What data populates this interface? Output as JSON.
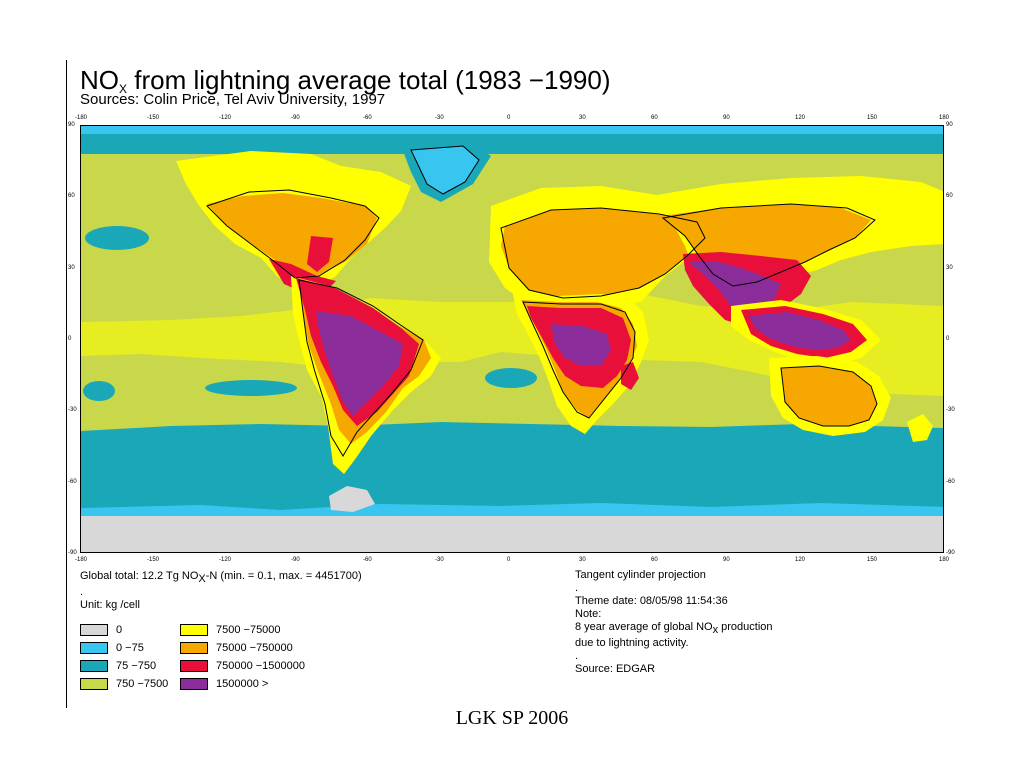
{
  "title": {
    "main_prefix": "NO",
    "main_sub": "X",
    "main_suffix": " from lightning average total (1983 −1990)",
    "subtitle": "Sources: Colin Price, Tel Aviv University, 1997"
  },
  "axes": {
    "lon_labels": [
      "-180",
      "-150",
      "-120",
      "-90",
      "-60",
      "-30",
      "0",
      "30",
      "60",
      "90",
      "120",
      "150",
      "180"
    ],
    "lat_labels": [
      "90",
      "60",
      "30",
      "0",
      "-30",
      "-60",
      "-90"
    ]
  },
  "info_left": {
    "line1_prefix": "Global total:  12.2 Tg NO",
    "line1_sub": "X",
    "line1_suffix": "-N (min. = 0.1, max. = 4451700)",
    "line2": ".",
    "unit": "Unit:  kg /cell"
  },
  "info_right": {
    "projection": "Tangent cylinder projection",
    "dot1": ".",
    "theme_date": "Theme date: 08/05/98 11:54:36",
    "note_label": "Note:",
    "note_line1_prefix": "8 year average of global NO",
    "note_line1_sub": "x",
    "note_line1_suffix": " production",
    "note_line2": "due to lightning activity.",
    "dot2": ".",
    "source": "Source: EDGAR"
  },
  "legend": [
    {
      "label": "0",
      "color": "#d8d8d8"
    },
    {
      "label": "0 −75",
      "color": "#38c6f0"
    },
    {
      "label": "75 −750",
      "color": "#1aa8b8"
    },
    {
      "label": "750 −7500",
      "color": "#c8d84a"
    },
    {
      "label": "7500 −75000",
      "color": "#ffff00"
    },
    {
      "label": "75000 −750000",
      "color": "#f6a800"
    },
    {
      "label": "750000 −1500000",
      "color": "#e8103a"
    },
    {
      "label": "1500000 >",
      "color": "#8a2d9a"
    }
  ],
  "footer": "LGK SP 2006"
}
